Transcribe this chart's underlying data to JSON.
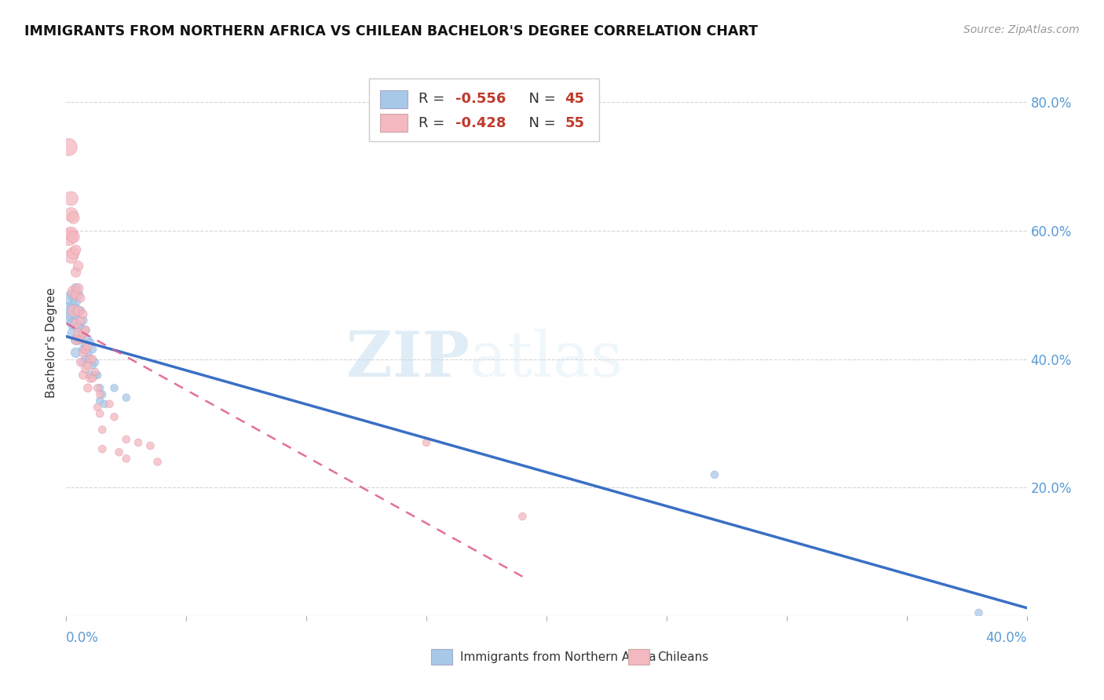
{
  "title": "IMMIGRANTS FROM NORTHERN AFRICA VS CHILEAN BACHELOR'S DEGREE CORRELATION CHART",
  "source": "Source: ZipAtlas.com",
  "ylabel": "Bachelor's Degree",
  "right_yticks": [
    "80.0%",
    "60.0%",
    "40.0%",
    "20.0%"
  ],
  "right_ytick_vals": [
    0.8,
    0.6,
    0.4,
    0.2
  ],
  "legend_blue_r": "-0.556",
  "legend_blue_n": "45",
  "legend_pink_r": "-0.428",
  "legend_pink_n": "55",
  "blue_color": "#a8c8e8",
  "pink_color": "#f4b8c0",
  "blue_line_color": "#3a6fc4",
  "pink_line_color": "#e06090",
  "watermark_zip": "ZIP",
  "watermark_atlas": "atlas",
  "xmin": 0.0,
  "xmax": 0.4,
  "ymin": 0.0,
  "ymax": 0.85,
  "background_color": "#ffffff",
  "grid_color": "#cccccc",
  "blue_scatter": [
    [
      0.001,
      0.475
    ],
    [
      0.002,
      0.495
    ],
    [
      0.002,
      0.465
    ],
    [
      0.003,
      0.5
    ],
    [
      0.003,
      0.48
    ],
    [
      0.003,
      0.455
    ],
    [
      0.003,
      0.44
    ],
    [
      0.004,
      0.51
    ],
    [
      0.004,
      0.49
    ],
    [
      0.004,
      0.47
    ],
    [
      0.004,
      0.455
    ],
    [
      0.004,
      0.43
    ],
    [
      0.004,
      0.41
    ],
    [
      0.005,
      0.5
    ],
    [
      0.005,
      0.475
    ],
    [
      0.005,
      0.45
    ],
    [
      0.005,
      0.43
    ],
    [
      0.006,
      0.475
    ],
    [
      0.006,
      0.45
    ],
    [
      0.006,
      0.43
    ],
    [
      0.007,
      0.46
    ],
    [
      0.007,
      0.44
    ],
    [
      0.007,
      0.415
    ],
    [
      0.007,
      0.395
    ],
    [
      0.008,
      0.445
    ],
    [
      0.008,
      0.42
    ],
    [
      0.008,
      0.4
    ],
    [
      0.009,
      0.43
    ],
    [
      0.009,
      0.41
    ],
    [
      0.01,
      0.425
    ],
    [
      0.01,
      0.4
    ],
    [
      0.01,
      0.375
    ],
    [
      0.011,
      0.415
    ],
    [
      0.011,
      0.39
    ],
    [
      0.012,
      0.395
    ],
    [
      0.012,
      0.375
    ],
    [
      0.013,
      0.375
    ],
    [
      0.014,
      0.355
    ],
    [
      0.014,
      0.335
    ],
    [
      0.015,
      0.345
    ],
    [
      0.016,
      0.33
    ],
    [
      0.02,
      0.355
    ],
    [
      0.025,
      0.34
    ],
    [
      0.38,
      0.005
    ],
    [
      0.27,
      0.22
    ]
  ],
  "pink_scatter": [
    [
      0.001,
      0.73
    ],
    [
      0.001,
      0.59
    ],
    [
      0.002,
      0.65
    ],
    [
      0.002,
      0.625
    ],
    [
      0.002,
      0.595
    ],
    [
      0.002,
      0.56
    ],
    [
      0.003,
      0.62
    ],
    [
      0.003,
      0.59
    ],
    [
      0.003,
      0.565
    ],
    [
      0.003,
      0.505
    ],
    [
      0.003,
      0.475
    ],
    [
      0.004,
      0.57
    ],
    [
      0.004,
      0.535
    ],
    [
      0.004,
      0.5
    ],
    [
      0.004,
      0.455
    ],
    [
      0.004,
      0.43
    ],
    [
      0.005,
      0.545
    ],
    [
      0.005,
      0.51
    ],
    [
      0.005,
      0.475
    ],
    [
      0.005,
      0.44
    ],
    [
      0.006,
      0.495
    ],
    [
      0.006,
      0.46
    ],
    [
      0.006,
      0.43
    ],
    [
      0.006,
      0.395
    ],
    [
      0.007,
      0.47
    ],
    [
      0.007,
      0.44
    ],
    [
      0.007,
      0.41
    ],
    [
      0.007,
      0.375
    ],
    [
      0.008,
      0.445
    ],
    [
      0.008,
      0.415
    ],
    [
      0.008,
      0.385
    ],
    [
      0.009,
      0.42
    ],
    [
      0.009,
      0.39
    ],
    [
      0.009,
      0.355
    ],
    [
      0.01,
      0.4
    ],
    [
      0.01,
      0.37
    ],
    [
      0.011,
      0.4
    ],
    [
      0.011,
      0.37
    ],
    [
      0.012,
      0.38
    ],
    [
      0.013,
      0.355
    ],
    [
      0.013,
      0.325
    ],
    [
      0.014,
      0.345
    ],
    [
      0.014,
      0.315
    ],
    [
      0.015,
      0.29
    ],
    [
      0.015,
      0.26
    ],
    [
      0.018,
      0.33
    ],
    [
      0.02,
      0.31
    ],
    [
      0.022,
      0.255
    ],
    [
      0.025,
      0.275
    ],
    [
      0.025,
      0.245
    ],
    [
      0.03,
      0.27
    ],
    [
      0.035,
      0.265
    ],
    [
      0.038,
      0.24
    ],
    [
      0.15,
      0.27
    ],
    [
      0.19,
      0.155
    ]
  ]
}
